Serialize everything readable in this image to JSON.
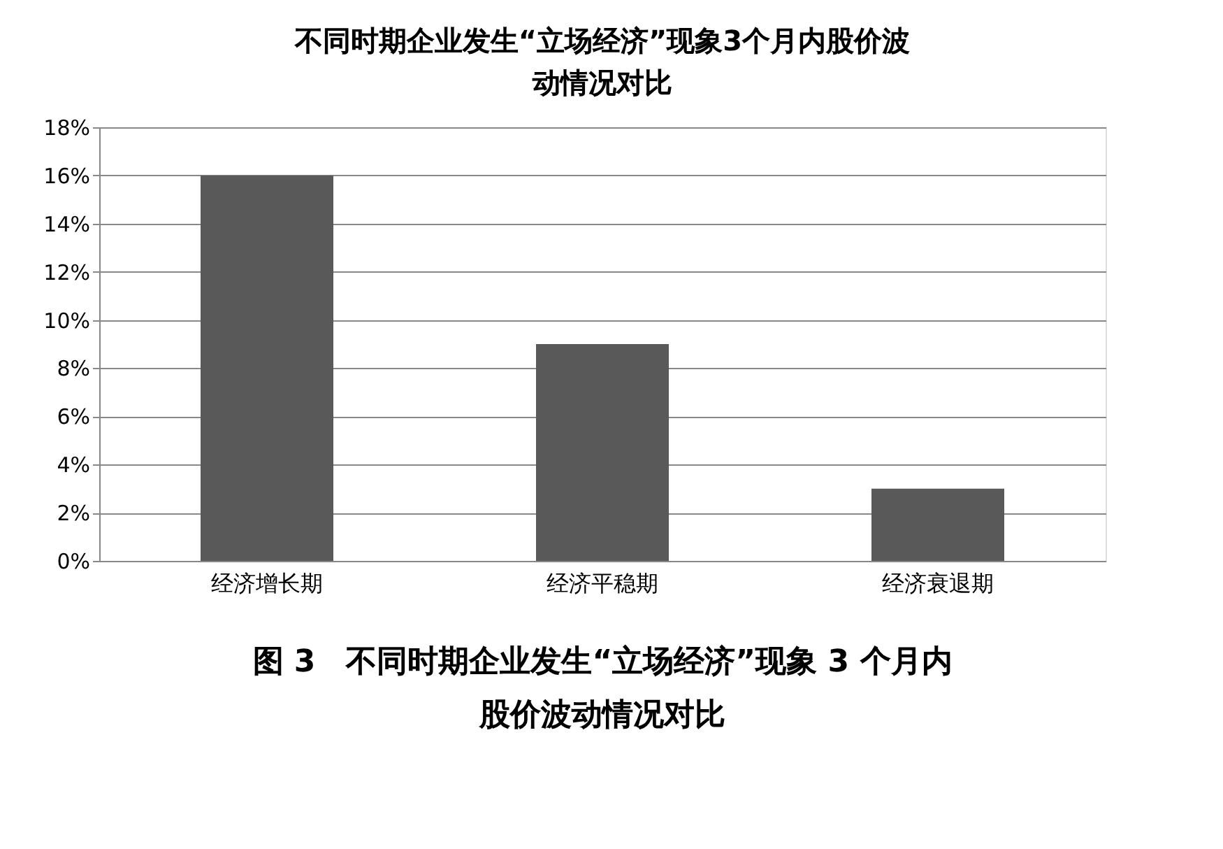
{
  "chart_data": {
    "type": "bar",
    "title": "不同时期企业发生“立场经济”现象3个月内股价波动情况对比",
    "categories": [
      "经济增长期",
      "经济平稳期",
      "经济衰退期"
    ],
    "values": [
      16,
      9,
      3
    ],
    "color": "#595959",
    "ylim": [
      0,
      18
    ],
    "yticks": [
      {
        "value": 0,
        "label": "0%"
      },
      {
        "value": 2,
        "label": "2%"
      },
      {
        "value": 4,
        "label": "4%"
      },
      {
        "value": 6,
        "label": "6%"
      },
      {
        "value": 8,
        "label": "8%"
      },
      {
        "value": 10,
        "label": "10%"
      },
      {
        "value": 12,
        "label": "12%"
      },
      {
        "value": 14,
        "label": "14%"
      },
      {
        "value": 16,
        "label": "16%"
      },
      {
        "value": 18,
        "label": "18%"
      }
    ],
    "grid": "y",
    "annotations": [
      "图 3　不同时期企业发生“立场经济”现象 3 个月内股价波动情况对比"
    ]
  }
}
